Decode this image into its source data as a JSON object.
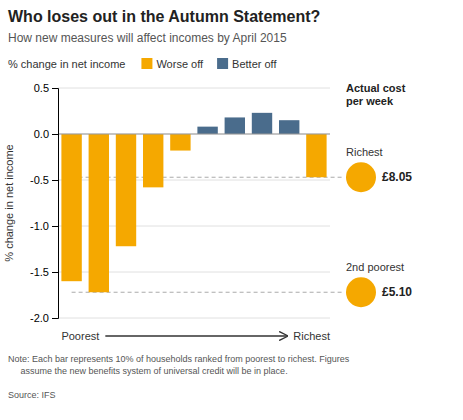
{
  "chart_data": {
    "type": "bar",
    "title": "Who loses out in the Autumn Statement?",
    "subtitle": "How new measures will affect incomes by April 2015",
    "y_label": "% change in net income",
    "x_label_start": "Poorest",
    "x_label_end": "Richest",
    "categories": [
      null,
      null,
      null,
      null,
      null,
      null,
      null,
      null,
      null,
      null
    ],
    "values": [
      -1.6,
      -1.72,
      -1.22,
      -0.58,
      -0.18,
      0.08,
      0.18,
      0.23,
      0.15,
      -0.47
    ],
    "colors": [
      "#F5A800",
      "#F5A800",
      "#F5A800",
      "#F5A800",
      "#F5A800",
      "#4A6C8C",
      "#4A6C8C",
      "#4A6C8C",
      "#4A6C8C",
      "#F5A800"
    ],
    "ylim": [
      -2.0,
      0.5
    ],
    "yticks": [
      {
        "value": -2.0,
        "label": "-2.0"
      },
      -1.5,
      {
        "value": -1.0,
        "label": "-1.0"
      },
      -0.5,
      {
        "value": 0.0,
        "label": "0.0"
      },
      0.5
    ],
    "grid": true,
    "legend": "top",
    "tick_labels": "y",
    "legend_entries": [
      {
        "name": "Worse off",
        "color": "#F5A800"
      },
      {
        "name": "Better off",
        "color": "#4A6C8C"
      }
    ],
    "reference_lines": [
      -1.72,
      -0.47
    ],
    "annotations_title": "Actual cost\nper week",
    "annotations": [
      {
        "label": "Richest",
        "value_label": "£8.05",
        "y": -0.47,
        "color": "#F5A800"
      },
      {
        "label": "2nd poorest",
        "value_label": "£5.10",
        "y": -1.72,
        "color": "#F5A800"
      }
    ],
    "note": "Note: Each bar represents 10% of households ranked from poorest to richest. Figures\n     assume the new benefits system of universal credit will be in place.",
    "source": "Source: IFS"
  }
}
